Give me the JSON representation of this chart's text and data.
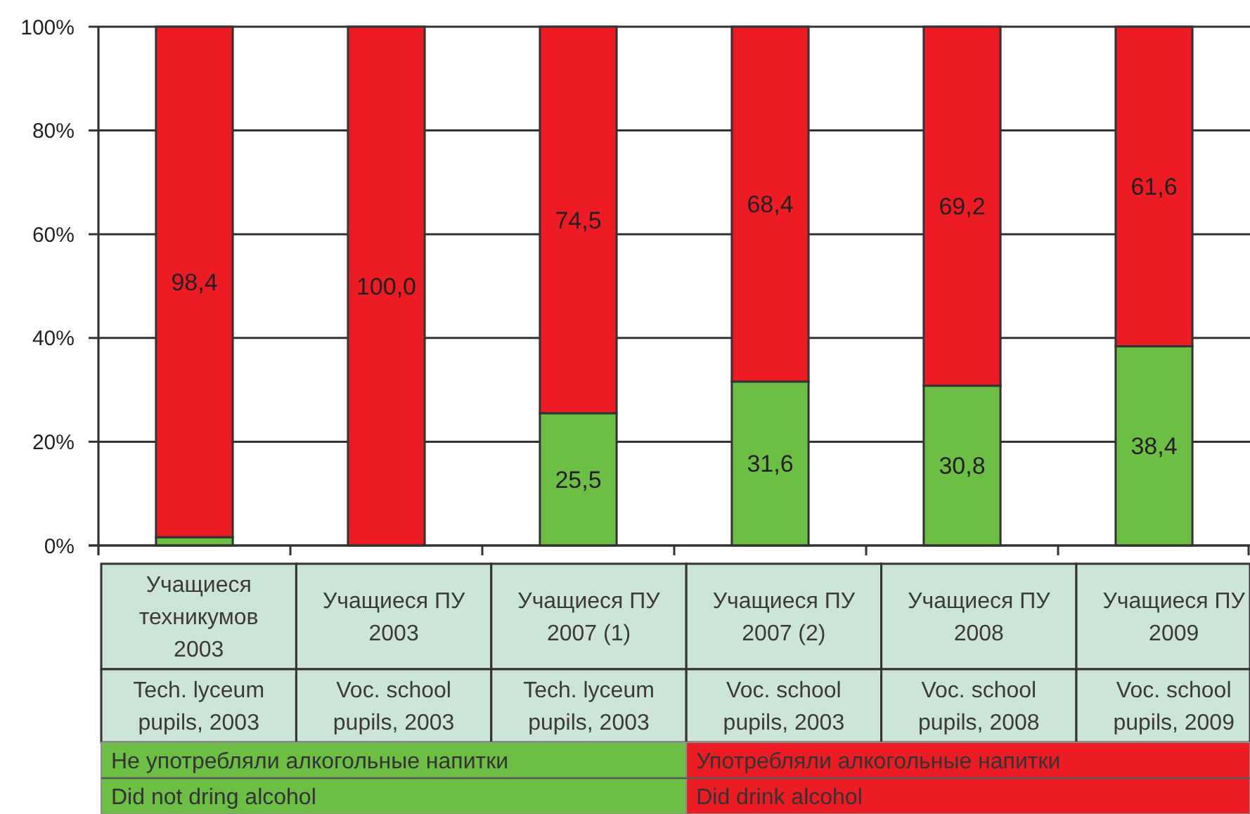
{
  "chart_data": {
    "type": "bar",
    "stacked": true,
    "categories": [
      "Учащиеся техникумов 2003\nTech. lyceum pupils, 2003",
      "Учащиеся ПУ 2003\nVoc. school pupils, 2003",
      "Учащиеся ПУ 2007 (1)\nTech. lyceum pupils, 2003",
      "Учащиеся ПУ 2007 (2)\nVoc. school pupils, 2003",
      "Учащиеся ПУ 2008\nVoc. school pupils, 2008",
      "Учащиеся ПУ 2009\nVoc. school pupils, 2009"
    ],
    "series": [
      {
        "name": "Не употребляли алкогольные напитки\nDid not dring alcohol",
        "color": "#6dbe45",
        "values": [
          1.6,
          0,
          25.5,
          31.6,
          30.8,
          38.4
        ],
        "value_labels": [
          null,
          null,
          "25,5",
          "31,6",
          "30,8",
          "38,4"
        ]
      },
      {
        "name": "Употребляли алкогольные напитки\nDid drink alcohol",
        "color": "#ed1c24",
        "values": [
          98.4,
          100.0,
          74.5,
          68.4,
          69.2,
          61.6
        ],
        "value_labels": [
          "98,4",
          "100,0",
          "74,5",
          "68,4",
          "69,2",
          "61,6"
        ]
      }
    ],
    "ylim": [
      0,
      100
    ],
    "yticks": [
      {
        "value": 0,
        "label": "0%"
      },
      {
        "value": 20,
        "label": "20%"
      },
      {
        "value": 40,
        "label": "40%"
      },
      {
        "value": 60,
        "label": "60%"
      },
      {
        "value": 80,
        "label": "80%"
      },
      {
        "value": 100,
        "label": "100%"
      }
    ],
    "grid": "y",
    "legend": "bottom"
  }
}
